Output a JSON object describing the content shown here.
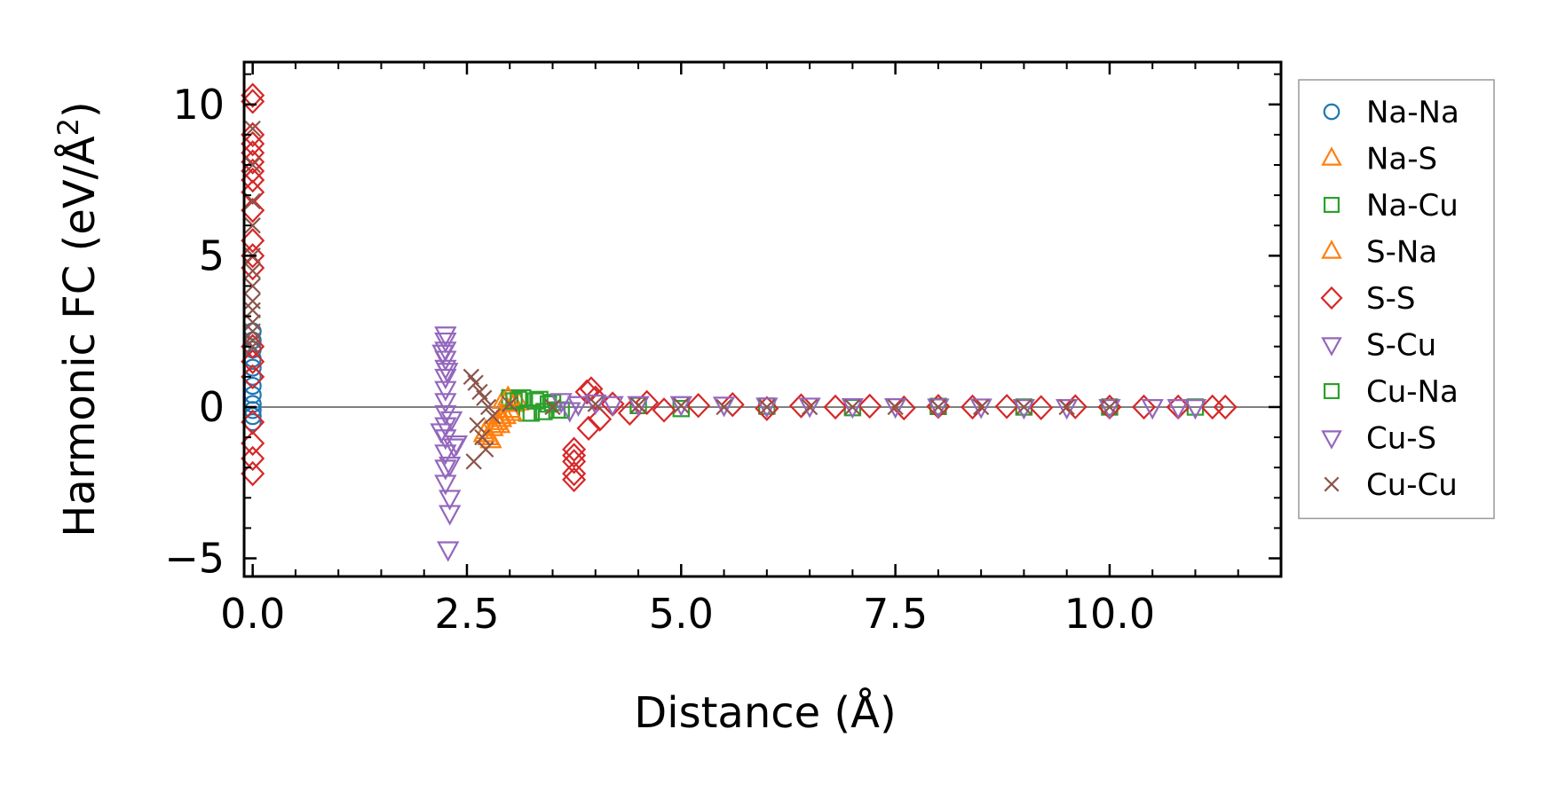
{
  "chart_data": {
    "type": "scatter",
    "title": "",
    "xlabel": "Distance (Å)",
    "ylabel_main": "Harmonic FC (eV/Å",
    "ylabel_sup": "2",
    "ylabel_close": ")",
    "xlim": [
      -0.1,
      12.0
    ],
    "ylim": [
      -5.6,
      11.4
    ],
    "xticks": [
      0.0,
      2.5,
      5.0,
      7.5,
      10.0
    ],
    "xtick_labels": [
      "0.0",
      "2.5",
      "5.0",
      "7.5",
      "10.0"
    ],
    "yticks": [
      -5,
      0,
      5,
      10
    ],
    "ytick_labels": [
      "−5",
      "0",
      "5",
      "10"
    ],
    "zero_line": 0,
    "legend_position": "outside-right",
    "series": [
      {
        "name": "Na-Na",
        "marker": "circle",
        "color": "#1f77b4",
        "x": [
          0,
          0,
          0,
          0,
          0,
          0,
          0,
          0,
          0,
          0,
          0,
          0
        ],
        "y": [
          2.5,
          2.2,
          1.9,
          1.6,
          1.3,
          1.0,
          0.7,
          0.4,
          0.1,
          -0.1,
          -0.3,
          -0.5
        ]
      },
      {
        "name": "Na-S",
        "marker": "triangle-up",
        "color": "#ff7f0e",
        "x": [
          2.7,
          2.75,
          2.8,
          2.85,
          2.9,
          2.95,
          3.0,
          2.78,
          2.88,
          2.92,
          3.05,
          3.1
        ],
        "y": [
          -0.9,
          -1.0,
          -0.7,
          -0.5,
          -0.4,
          -0.3,
          -0.1,
          -1.1,
          -0.6,
          0.2,
          0.1,
          0.15
        ]
      },
      {
        "name": "Na-Cu",
        "marker": "square",
        "color": "#2ca02c",
        "x": [
          3.0,
          3.1,
          3.2,
          3.3,
          3.4,
          3.5,
          3.6,
          3.15,
          3.35,
          4.5,
          5.0,
          6.0,
          7.0,
          8.0,
          9.0,
          10.0,
          11.0
        ],
        "y": [
          0.3,
          0.25,
          -0.2,
          0.2,
          -0.15,
          0.15,
          -0.1,
          0.3,
          0.25,
          0.05,
          -0.05,
          0.03,
          -0.02,
          0.02,
          0.0,
          0.0,
          0.0
        ]
      },
      {
        "name": "S-Na",
        "marker": "triangle-up",
        "color": "#ff7f0e",
        "x": [
          2.72,
          2.82,
          2.9,
          2.98,
          3.02
        ],
        "y": [
          -0.8,
          -0.6,
          -0.3,
          0.3,
          -0.2
        ]
      },
      {
        "name": "S-S",
        "marker": "diamond",
        "color": "#d62728",
        "x": [
          0,
          0,
          0,
          0,
          0,
          0,
          0,
          0,
          0,
          0,
          0,
          0,
          0,
          0,
          0,
          0,
          0,
          0,
          0,
          0,
          3.75,
          3.75,
          3.75,
          3.75,
          3.75,
          3.9,
          3.95,
          4.0,
          3.92,
          4.05,
          4.2,
          4.4,
          4.6,
          4.8,
          5.2,
          5.6,
          6.0,
          6.4,
          6.8,
          7.2,
          7.6,
          8.0,
          8.4,
          8.8,
          9.2,
          9.6,
          10.0,
          10.4,
          10.8,
          11.2,
          11.35
        ],
        "y": [
          10.3,
          10.1,
          9.0,
          8.7,
          8.4,
          8.1,
          7.8,
          7.5,
          7.1,
          6.5,
          5.5,
          5.0,
          4.6,
          2.0,
          1.5,
          1.0,
          -0.5,
          -1.2,
          -1.7,
          -2.2,
          -1.4,
          -1.8,
          -2.2,
          -2.4,
          -1.6,
          0.5,
          0.6,
          0.3,
          -0.7,
          -0.4,
          0.1,
          -0.2,
          0.15,
          -0.1,
          0.05,
          0.08,
          -0.05,
          0.04,
          0.0,
          0.03,
          -0.03,
          0.02,
          0.0,
          0.02,
          -0.02,
          0.01,
          0.0,
          0.0,
          0.0,
          0.0,
          0.0
        ]
      },
      {
        "name": "S-Cu",
        "marker": "triangle-down",
        "color": "#9467bd",
        "x": [
          2.25,
          2.25,
          2.25,
          2.25,
          2.25,
          2.25,
          2.25,
          2.25,
          2.25,
          2.25,
          2.25,
          2.25,
          2.25,
          2.25,
          2.3,
          2.3,
          2.2,
          2.35,
          2.3,
          2.28
        ],
        "y": [
          2.4,
          2.2,
          1.9,
          1.6,
          1.3,
          1.0,
          0.6,
          0.2,
          -0.2,
          -0.6,
          -1.0,
          -1.5,
          -2.0,
          -2.5,
          -3.0,
          -3.5,
          -0.8,
          -1.3,
          -1.9,
          -4.7
        ]
      },
      {
        "name": "Cu-Na",
        "marker": "square",
        "color": "#2ca02c",
        "x": [
          3.05,
          3.25,
          3.45,
          3.55
        ],
        "y": [
          0.2,
          -0.2,
          0.1,
          -0.1
        ]
      },
      {
        "name": "Cu-S",
        "marker": "triangle-down",
        "color": "#9467bd",
        "x": [
          2.22,
          2.27,
          2.32,
          2.38,
          3.6,
          3.7,
          3.8,
          4.0,
          4.2,
          4.5,
          5.0,
          5.5,
          6.0,
          6.5,
          7.0,
          7.5,
          8.0,
          8.5,
          9.0,
          9.5,
          10.0,
          10.5,
          10.8,
          11.0
        ],
        "y": [
          1.8,
          1.2,
          -0.4,
          -1.2,
          0.2,
          -0.1,
          0.1,
          0.15,
          0.1,
          0.1,
          0.1,
          0.08,
          0.05,
          0.05,
          0.03,
          0.03,
          0.02,
          0.02,
          0.0,
          0.0,
          0.0,
          0.0,
          0.0,
          0.0
        ]
      },
      {
        "name": "Cu-Cu",
        "marker": "x",
        "color": "#8c564b",
        "x": [
          0,
          0,
          0,
          0,
          0,
          0,
          0,
          0,
          0,
          0,
          0,
          0,
          0,
          2.55,
          2.6,
          2.65,
          2.7,
          2.75,
          2.8,
          2.62,
          2.68,
          2.72,
          2.58,
          3.0,
          3.5,
          4.0,
          4.5,
          5.0,
          5.5,
          6.0,
          6.5,
          7.0,
          7.5,
          8.0,
          8.5,
          9.0,
          9.5,
          10.0
        ],
        "y": [
          9.2,
          8.0,
          6.8,
          6.0,
          5.0,
          4.5,
          4.0,
          3.5,
          3.2,
          2.8,
          2.5,
          2.2,
          2.0,
          1.0,
          0.8,
          0.5,
          0.3,
          0.0,
          -0.3,
          -0.6,
          -1.0,
          -1.4,
          -1.8,
          0.1,
          0.0,
          0.1,
          0.05,
          0.05,
          0.0,
          0.0,
          0.0,
          0.0,
          0.0,
          0.0,
          0.0,
          0.0,
          0.0,
          0.0
        ]
      }
    ]
  }
}
